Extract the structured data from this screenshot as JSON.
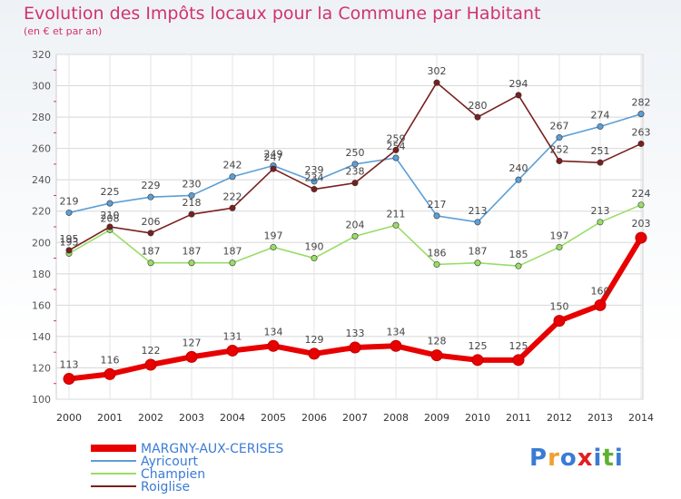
{
  "title": "Evolution des Impôts locaux pour la Commune par Habitant",
  "subtitle": "(en € et par an)",
  "brand": {
    "letters": [
      "P",
      "r",
      "o",
      "x",
      "i",
      "t",
      "i"
    ],
    "colors": [
      "#3a7bd5",
      "#f0a030",
      "#3a7bd5",
      "#e02020",
      "#3a7bd5",
      "#60b030",
      "#3a7bd5"
    ]
  },
  "chart_data": {
    "type": "line",
    "x": [
      "2000",
      "2001",
      "2002",
      "2003",
      "2004",
      "2005",
      "2006",
      "2007",
      "2008",
      "2009",
      "2010",
      "2011",
      "2012",
      "2013",
      "2014"
    ],
    "ylim": [
      100,
      320
    ],
    "yticks": [
      100,
      120,
      140,
      160,
      180,
      200,
      220,
      240,
      260,
      280,
      300,
      320
    ],
    "grid": true,
    "legend_position": "bottom-left",
    "series": [
      {
        "name": "MARGNY-AUX-CERISES",
        "color": "#e80000",
        "values": [
          113,
          116,
          122,
          127,
          131,
          134,
          129,
          133,
          134,
          128,
          125,
          125,
          150,
          160,
          203
        ]
      },
      {
        "name": "Ayricourt",
        "color": "#5c9fd6",
        "values": [
          219,
          225,
          229,
          230,
          242,
          249,
          239,
          250,
          254,
          217,
          213,
          240,
          267,
          274,
          282
        ]
      },
      {
        "name": "Champien",
        "color": "#99dd66",
        "values": [
          193,
          208,
          187,
          187,
          187,
          197,
          190,
          204,
          211,
          186,
          187,
          185,
          197,
          213,
          224
        ]
      },
      {
        "name": "Roiglise",
        "color": "#7a1f1f",
        "values": [
          195,
          210,
          206,
          218,
          222,
          247,
          234,
          238,
          259,
          302,
          280,
          294,
          252,
          251,
          263
        ]
      }
    ]
  }
}
